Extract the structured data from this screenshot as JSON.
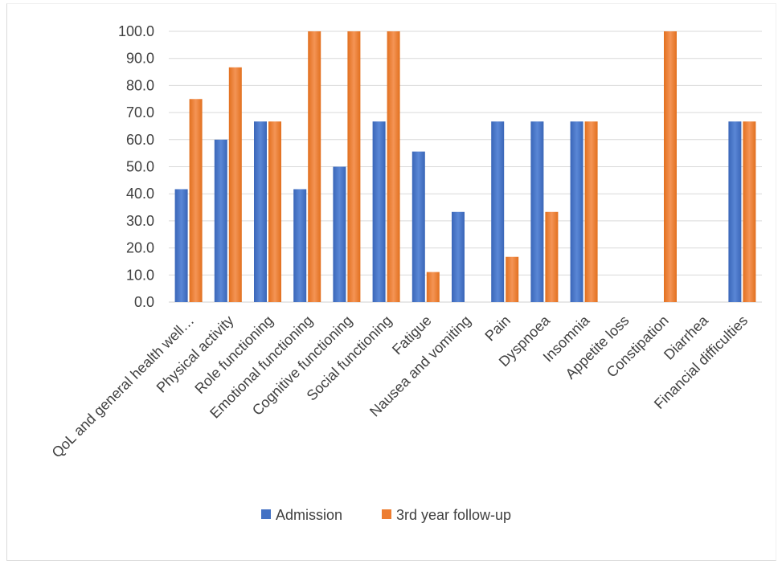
{
  "chart_data": {
    "type": "bar",
    "title": "",
    "xlabel": "",
    "ylabel": "",
    "ylim": [
      0,
      100
    ],
    "yticks": [
      "0.0",
      "10.0",
      "20.0",
      "30.0",
      "40.0",
      "50.0",
      "60.0",
      "70.0",
      "80.0",
      "90.0",
      "100.0"
    ],
    "grid": true,
    "legend_position": "bottom",
    "categories": [
      "QoL and general health well…",
      "Physical activity",
      "Role functioning",
      "Emotional functioning",
      "Cognitive functioning",
      "Social functioning",
      "Fatigue",
      "Nausea and vomiting",
      "Pain",
      "Dyspnoea",
      "Insomnia",
      "Appetite loss",
      "Constipation",
      "Diarrhea",
      "Financial difficulties"
    ],
    "series": [
      {
        "name": "Admission",
        "color": "#4472c4",
        "values": [
          41.7,
          60.0,
          66.7,
          41.7,
          50.0,
          66.7,
          55.6,
          33.3,
          66.7,
          66.7,
          66.7,
          0,
          0,
          0,
          66.7
        ]
      },
      {
        "name": "3rd year follow-up",
        "color": "#ed7d31",
        "values": [
          75.0,
          86.7,
          66.7,
          100.0,
          100.0,
          100.0,
          11.1,
          0,
          16.7,
          33.3,
          66.7,
          0,
          100.0,
          0,
          66.7
        ]
      }
    ]
  }
}
